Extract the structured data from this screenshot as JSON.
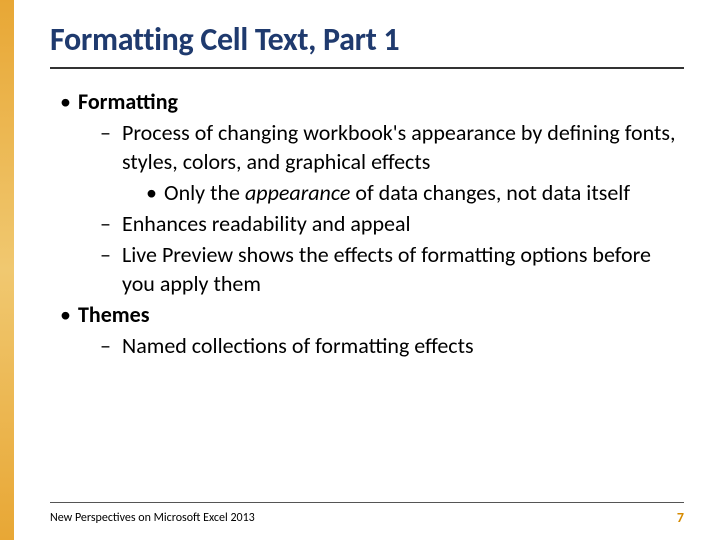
{
  "colors": {
    "title_color": "#1f3a6e",
    "stripe_gradient": [
      "#e8a735",
      "#f0c870",
      "#e8a735"
    ],
    "page_num_color": "#d68a00",
    "background": "#ffffff",
    "rule_color": "#333333",
    "text_color": "#000000"
  },
  "typography": {
    "font_family": "Calibri",
    "title_fontsize": 32,
    "title_weight": 700,
    "body_fontsize": 22,
    "footer_fontsize": 12,
    "pagenum_fontsize": 14
  },
  "title": "Formatting Cell Text, Part 1",
  "bullets": {
    "b1": {
      "marker": "•",
      "text": "Formatting"
    },
    "b1_1": {
      "marker": "–",
      "text": "Process of changing workbook's appearance by defining fonts, styles, colors, and graphical effects"
    },
    "b1_1_1": {
      "marker": "•",
      "prefix": "Only the ",
      "italic": "appearance",
      "suffix": " of data changes, not data itself"
    },
    "b1_2": {
      "marker": "–",
      "text": "Enhances readability and appeal"
    },
    "b1_3": {
      "marker": "–",
      "text": "Live Preview shows the effects of formatting options before you apply them"
    },
    "b2": {
      "marker": "•",
      "text": "Themes"
    },
    "b2_1": {
      "marker": "–",
      "text": "Named collections of formatting effects"
    }
  },
  "footer": {
    "left": "New Perspectives on Microsoft Excel 2013",
    "page": "7"
  }
}
